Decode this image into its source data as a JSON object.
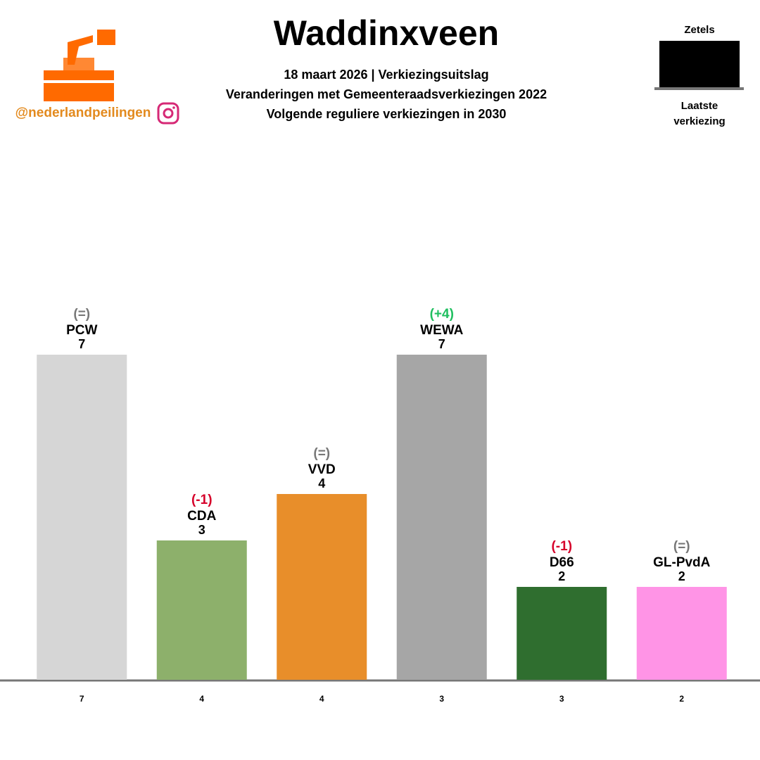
{
  "handle": "@nederlandpeilingen",
  "chart_data": {
    "type": "bar",
    "title": "Waddinxveen",
    "subtitle": [
      "18 maart 2026 | Verkiezingsuitslag",
      "Veranderingen met Gemeenteraadsverkiezingen 2022",
      "Volgende reguliere verkiezingen in 2030"
    ],
    "categories": [
      "PCW",
      "CDA",
      "VVD",
      "WEWA",
      "D66",
      "GL-PvdA"
    ],
    "series": [
      {
        "name": "Zetels",
        "values": [
          7,
          3,
          4,
          7,
          2,
          2
        ],
        "colors": [
          "#d6d6d6",
          "#8db06b",
          "#e88e2a",
          "#a6a6a6",
          "#2f6e2f",
          "#ff94e6"
        ]
      },
      {
        "name": "Laatste verkiezing",
        "values": [
          7,
          4,
          4,
          3,
          3,
          2
        ],
        "color": "#777777"
      }
    ],
    "change_labels": [
      "(=)",
      "(-1)",
      "(=)",
      "(+4)",
      "(-1)",
      "(=)"
    ],
    "change_colors": [
      "#777777",
      "#d6002a",
      "#777777",
      "#1fbf5f",
      "#d6002a",
      "#777777"
    ],
    "ylim": [
      0,
      7
    ]
  }
}
